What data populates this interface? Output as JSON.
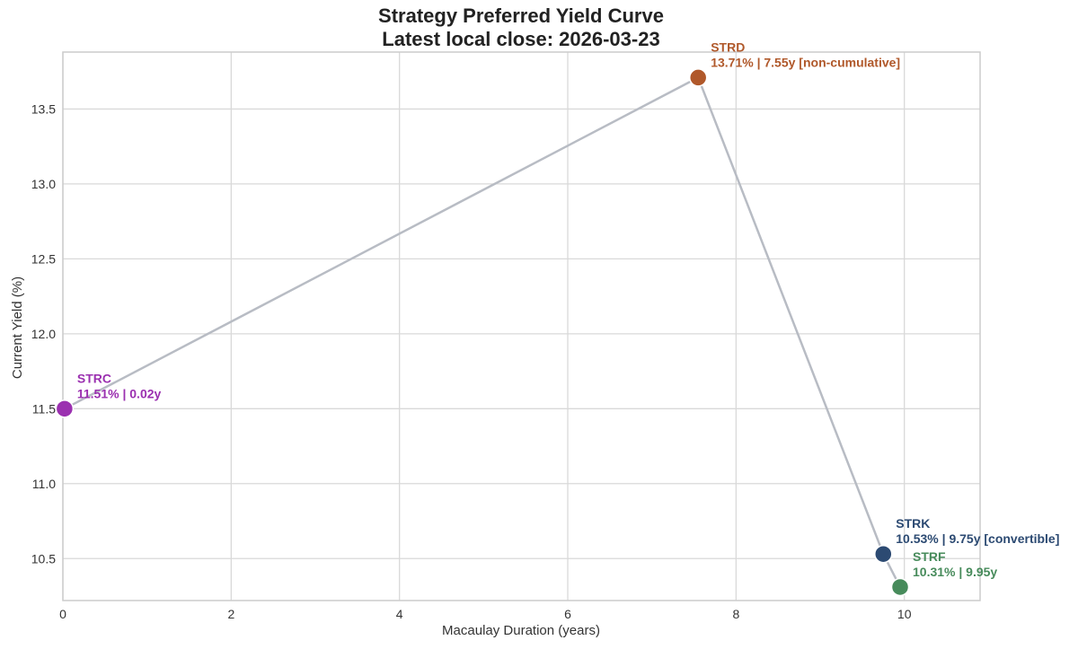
{
  "chart_data": {
    "type": "scatter",
    "title": "Strategy Preferred Yield Curve",
    "subtitle": "Latest local close: 2026-03-23",
    "xlabel": "Macaulay Duration (years)",
    "ylabel": "Current Yield (%)",
    "xlim": [
      0,
      10.9
    ],
    "ylim": [
      10.22,
      13.88
    ],
    "xticks": [
      0,
      2,
      4,
      6,
      8,
      10
    ],
    "yticks": [
      10.5,
      11.0,
      11.5,
      12.0,
      12.5,
      13.0,
      13.5
    ],
    "grid": true,
    "connect_points": true,
    "line_color": "#b8bcc4",
    "points": [
      {
        "ticker": "STRC",
        "x": 0.02,
        "y": 11.5,
        "label": "11.51% | 0.02y",
        "color": "#9b30b0"
      },
      {
        "ticker": "STRD",
        "x": 7.55,
        "y": 13.71,
        "label": "13.71% | 7.55y [non-cumulative]",
        "color": "#b0582a"
      },
      {
        "ticker": "STRK",
        "x": 9.75,
        "y": 10.53,
        "label": "10.53% | 9.75y [convertible]",
        "color": "#2c4a72"
      },
      {
        "ticker": "STRF",
        "x": 9.95,
        "y": 10.31,
        "label": "10.31% | 9.95y",
        "color": "#478b5b"
      }
    ]
  }
}
